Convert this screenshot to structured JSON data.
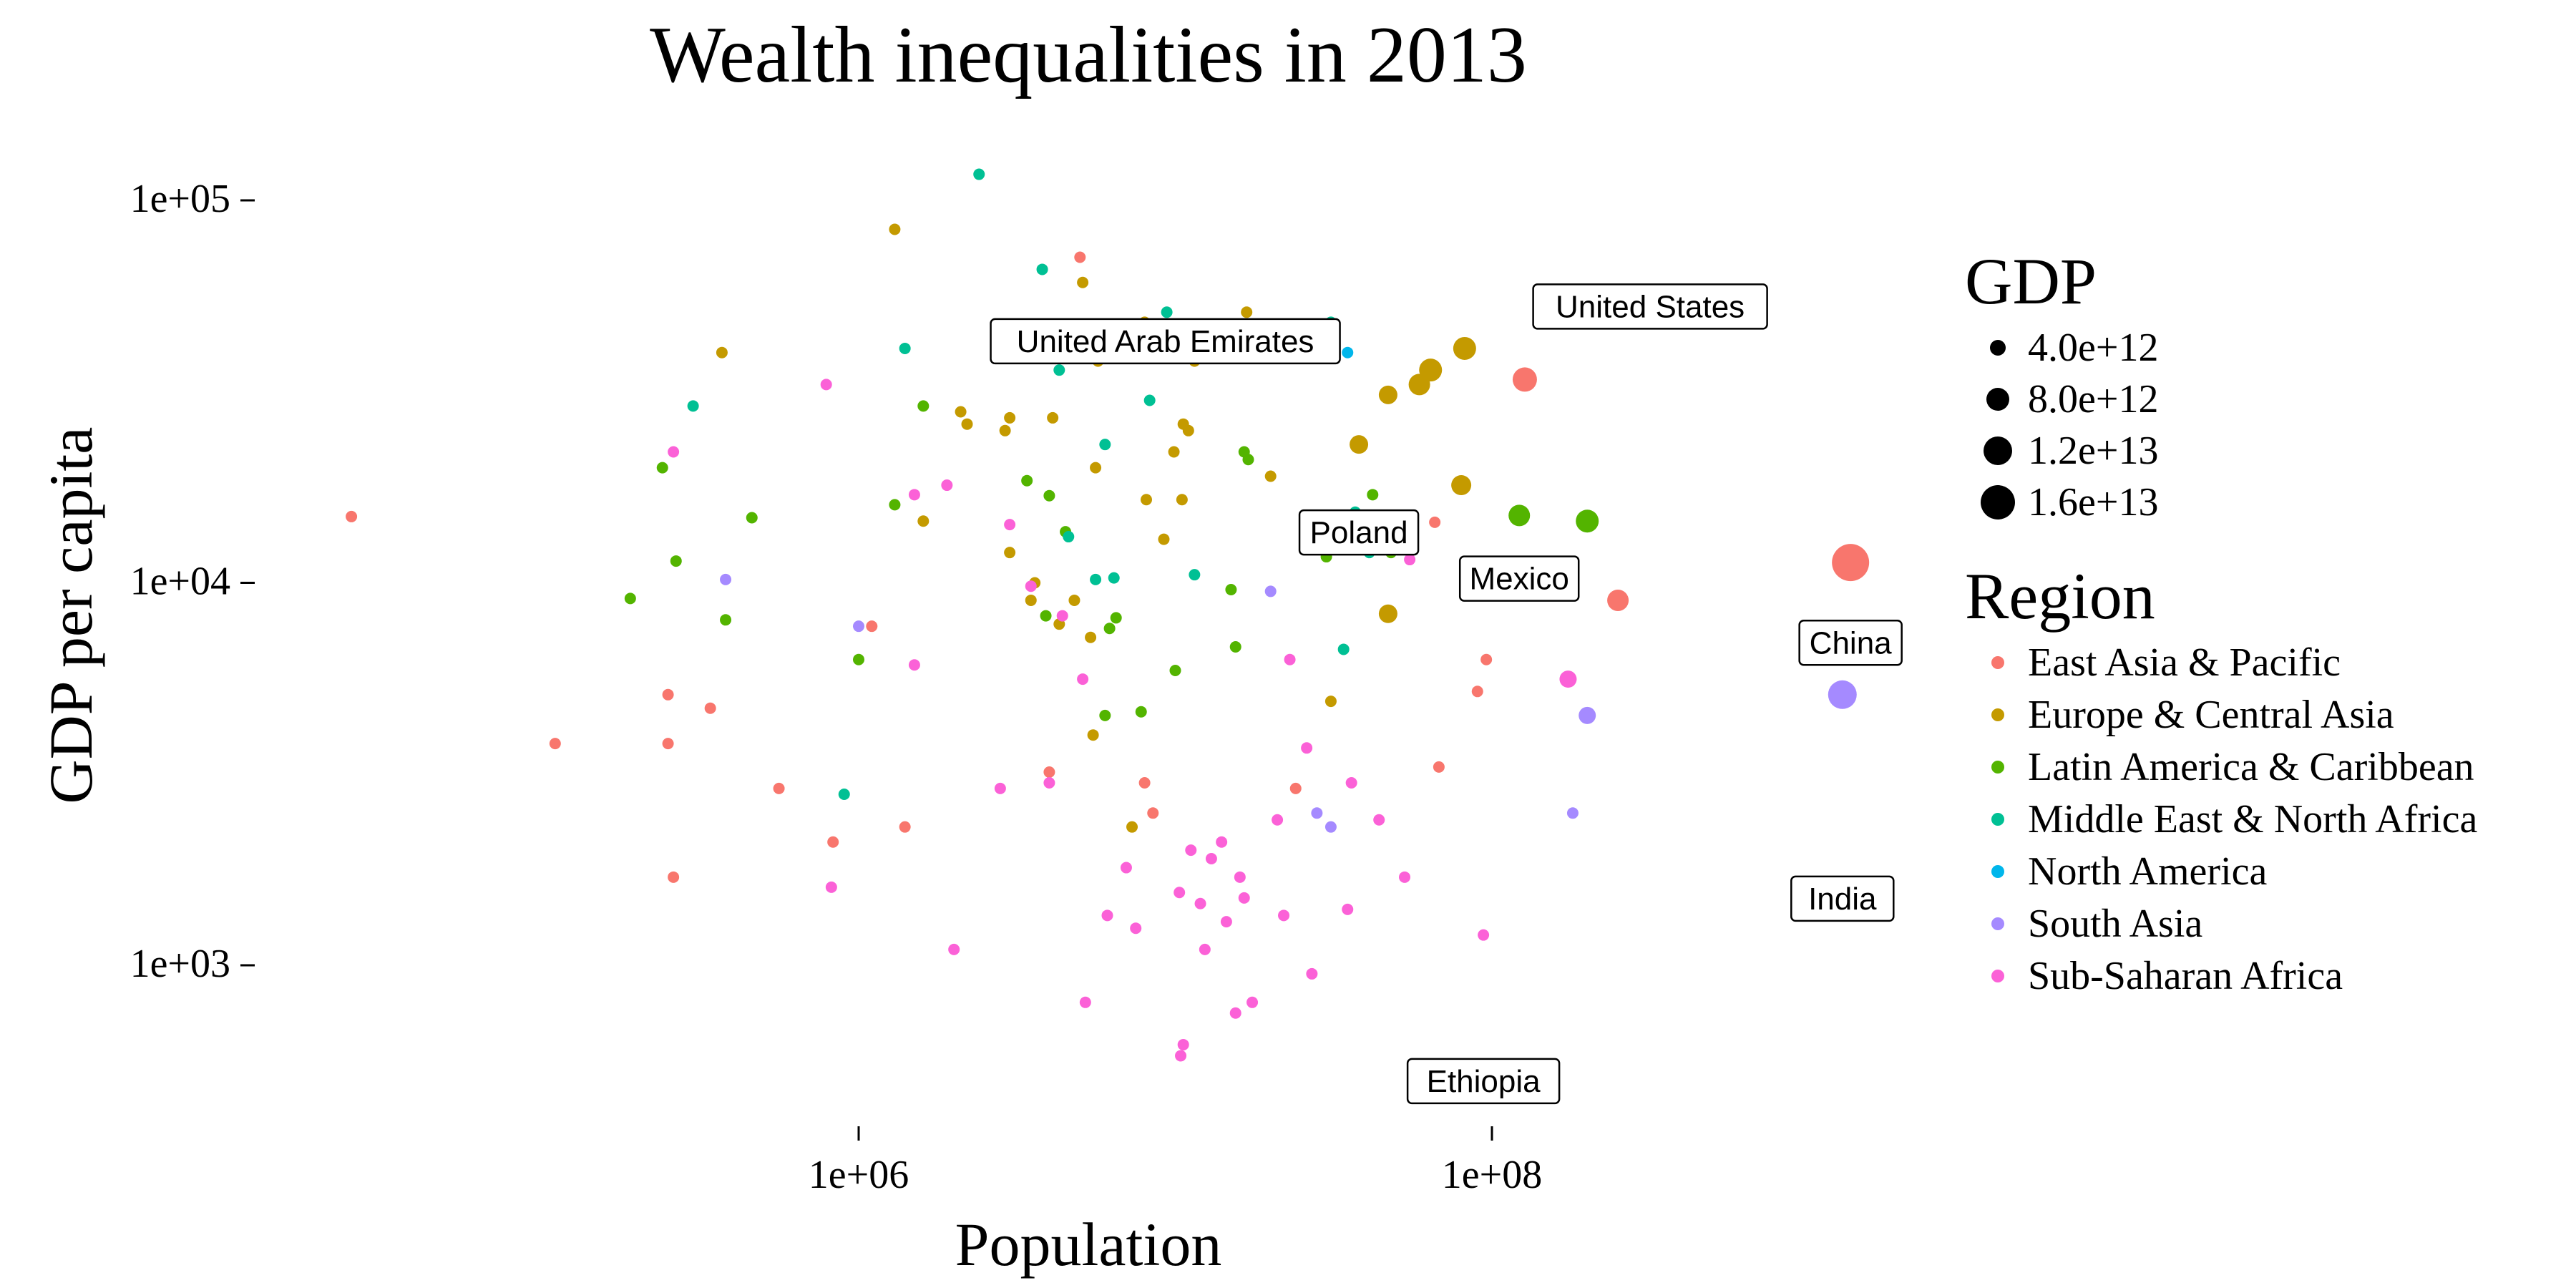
{
  "chart_data": {
    "type": "scatter",
    "title": "Wealth inequalities in 2013",
    "xlabel": "Population",
    "ylabel": "GDP per capita",
    "x_scale": "log10",
    "y_scale": "log10",
    "xlim": [
      20000,
      2000000000
    ],
    "ylim": [
      350,
      150000
    ],
    "x_ticks": [
      {
        "value": 1000000,
        "label": "1e+06"
      },
      {
        "value": 100000000,
        "label": "1e+08"
      }
    ],
    "y_ticks": [
      {
        "value": 1000,
        "label": "1e+03"
      },
      {
        "value": 10000,
        "label": "1e+04"
      },
      {
        "value": 100000,
        "label": "1e+05"
      }
    ],
    "grid": false,
    "legend_position": "right",
    "size_legend": {
      "title": "GDP",
      "entries": [
        {
          "value": 4000000000000.0,
          "label": "4.0e+12"
        },
        {
          "value": 8000000000000.0,
          "label": "8.0e+12"
        },
        {
          "value": 12000000000000.0,
          "label": "1.2e+13"
        },
        {
          "value": 16000000000000.0,
          "label": "1.6e+13"
        }
      ]
    },
    "color_legend": {
      "title": "Region",
      "entries": [
        {
          "name": "East Asia & Pacific",
          "color": "#F8766D"
        },
        {
          "name": "Europe & Central Asia",
          "color": "#C49A00"
        },
        {
          "name": "Latin America & Caribbean",
          "color": "#53B400"
        },
        {
          "name": "Middle East & North Africa",
          "color": "#00C094"
        },
        {
          "name": "North America",
          "color": "#00B6EB"
        },
        {
          "name": "South Asia",
          "color": "#A58AFF"
        },
        {
          "name": "Sub-Saharan Africa",
          "color": "#FB61D7"
        }
      ]
    },
    "labels": [
      {
        "text": "United Arab Emirates",
        "x": 9300000,
        "y": 43000
      },
      {
        "text": "United States",
        "x": 316000000,
        "y": 53000
      },
      {
        "text": "Poland",
        "x": 38000000,
        "y": 13600
      },
      {
        "text": "Mexico",
        "x": 122000000,
        "y": 10300
      },
      {
        "text": "China",
        "x": 1357000000,
        "y": 7000
      },
      {
        "text": "India",
        "x": 1279000000,
        "y": 1500
      },
      {
        "text": "Ethiopia",
        "x": 94000000,
        "y": 500
      }
    ],
    "points": [
      {
        "r": 0,
        "x": 25000,
        "y": 14900
      },
      {
        "r": 0,
        "x": 110000,
        "y": 3800
      },
      {
        "r": 0,
        "x": 250000,
        "y": 5100
      },
      {
        "r": 0,
        "x": 250000,
        "y": 3800
      },
      {
        "r": 0,
        "x": 260000,
        "y": 1700
      },
      {
        "r": 0,
        "x": 340000,
        "y": 4700
      },
      {
        "r": 0,
        "x": 560000,
        "y": 2900
      },
      {
        "r": 0,
        "x": 830000,
        "y": 2100
      },
      {
        "r": 0,
        "x": 1100000,
        "y": 7700
      },
      {
        "r": 0,
        "x": 1400000,
        "y": 2300
      },
      {
        "r": 0,
        "x": 4000000,
        "y": 3200
      },
      {
        "r": 0,
        "x": 5000000,
        "y": 71000
      },
      {
        "r": 0,
        "x": 8000000,
        "y": 3000
      },
      {
        "r": 0,
        "x": 8500000,
        "y": 2500
      },
      {
        "r": 0,
        "x": 24000000,
        "y": 2900
      },
      {
        "r": 0,
        "x": 38000000,
        "y": 23000
      },
      {
        "r": 0,
        "x": 66000000,
        "y": 14400
      },
      {
        "r": 0,
        "x": 68000000,
        "y": 3300
      },
      {
        "r": 0,
        "x": 90000000,
        "y": 5200
      },
      {
        "r": 0,
        "x": 96000000,
        "y": 6300
      },
      {
        "r": 0,
        "x": 127000000,
        "y": 34000
      },
      {
        "r": 0,
        "x": 250000000,
        "y": 9000
      },
      {
        "r": 0,
        "x": 1357000000,
        "y": 11300
      },
      {
        "r": 1,
        "x": 370000,
        "y": 40000
      },
      {
        "r": 1,
        "x": 1300000,
        "y": 84000
      },
      {
        "r": 1,
        "x": 1600000,
        "y": 14500
      },
      {
        "r": 1,
        "x": 2100000,
        "y": 28000
      },
      {
        "r": 1,
        "x": 2200000,
        "y": 26000
      },
      {
        "r": 1,
        "x": 2900000,
        "y": 25000
      },
      {
        "r": 1,
        "x": 3000000,
        "y": 27000
      },
      {
        "r": 1,
        "x": 3000000,
        "y": 12000
      },
      {
        "r": 1,
        "x": 3500000,
        "y": 9000
      },
      {
        "r": 1,
        "x": 3600000,
        "y": 10000
      },
      {
        "r": 1,
        "x": 4100000,
        "y": 27000
      },
      {
        "r": 1,
        "x": 4300000,
        "y": 7800
      },
      {
        "r": 1,
        "x": 4800000,
        "y": 9000
      },
      {
        "r": 1,
        "x": 5100000,
        "y": 61000
      },
      {
        "r": 1,
        "x": 5400000,
        "y": 7200
      },
      {
        "r": 1,
        "x": 5500000,
        "y": 4000
      },
      {
        "r": 1,
        "x": 5600000,
        "y": 20000
      },
      {
        "r": 1,
        "x": 5700000,
        "y": 38000
      },
      {
        "r": 1,
        "x": 7300000,
        "y": 2300
      },
      {
        "r": 1,
        "x": 8000000,
        "y": 48000
      },
      {
        "r": 1,
        "x": 8100000,
        "y": 16500
      },
      {
        "r": 1,
        "x": 9200000,
        "y": 13000
      },
      {
        "r": 1,
        "x": 9900000,
        "y": 22000
      },
      {
        "r": 1,
        "x": 10500000,
        "y": 16500
      },
      {
        "r": 1,
        "x": 10600000,
        "y": 26000
      },
      {
        "r": 1,
        "x": 11000000,
        "y": 25000
      },
      {
        "r": 1,
        "x": 11500000,
        "y": 38000
      },
      {
        "r": 1,
        "x": 16800000,
        "y": 51000
      },
      {
        "r": 1,
        "x": 20000000,
        "y": 19000
      },
      {
        "r": 1,
        "x": 31000000,
        "y": 4900
      },
      {
        "r": 1,
        "x": 38000000,
        "y": 23000
      },
      {
        "r": 1,
        "x": 47000000,
        "y": 8300
      },
      {
        "r": 1,
        "x": 47000000,
        "y": 31000
      },
      {
        "r": 1,
        "x": 59000000,
        "y": 33000
      },
      {
        "r": 1,
        "x": 64000000,
        "y": 36000
      },
      {
        "r": 1,
        "x": 80000000,
        "y": 18000
      },
      {
        "r": 1,
        "x": 82000000,
        "y": 41000
      },
      {
        "r": 2,
        "x": 190000,
        "y": 9100
      },
      {
        "r": 2,
        "x": 240000,
        "y": 20000
      },
      {
        "r": 2,
        "x": 265000,
        "y": 11400
      },
      {
        "r": 2,
        "x": 380000,
        "y": 8000
      },
      {
        "r": 2,
        "x": 460000,
        "y": 14800
      },
      {
        "r": 2,
        "x": 1000000,
        "y": 6300
      },
      {
        "r": 2,
        "x": 1300000,
        "y": 16000
      },
      {
        "r": 2,
        "x": 1600000,
        "y": 29000
      },
      {
        "r": 2,
        "x": 3400000,
        "y": 18500
      },
      {
        "r": 2,
        "x": 3900000,
        "y": 8200
      },
      {
        "r": 2,
        "x": 4000000,
        "y": 16900
      },
      {
        "r": 2,
        "x": 4500000,
        "y": 13600
      },
      {
        "r": 2,
        "x": 6000000,
        "y": 4500
      },
      {
        "r": 2,
        "x": 6200000,
        "y": 7600
      },
      {
        "r": 2,
        "x": 6500000,
        "y": 8100
      },
      {
        "r": 2,
        "x": 7800000,
        "y": 4600
      },
      {
        "r": 2,
        "x": 10000000,
        "y": 5900
      },
      {
        "r": 2,
        "x": 15000000,
        "y": 9600
      },
      {
        "r": 2,
        "x": 15500000,
        "y": 6800
      },
      {
        "r": 2,
        "x": 16500000,
        "y": 22000
      },
      {
        "r": 2,
        "x": 17000000,
        "y": 21000
      },
      {
        "r": 2,
        "x": 30000000,
        "y": 11700
      },
      {
        "r": 2,
        "x": 42000000,
        "y": 17000
      },
      {
        "r": 2,
        "x": 48000000,
        "y": 12000
      },
      {
        "r": 2,
        "x": 122000000,
        "y": 15000
      },
      {
        "r": 2,
        "x": 200000000,
        "y": 14500
      },
      {
        "r": 3,
        "x": 300000,
        "y": 29000
      },
      {
        "r": 3,
        "x": 900000,
        "y": 2800
      },
      {
        "r": 3,
        "x": 1400000,
        "y": 41000
      },
      {
        "r": 3,
        "x": 2400000,
        "y": 117000
      },
      {
        "r": 3,
        "x": 3800000,
        "y": 66000
      },
      {
        "r": 3,
        "x": 4300000,
        "y": 36000
      },
      {
        "r": 3,
        "x": 4600000,
        "y": 13200
      },
      {
        "r": 3,
        "x": 5600000,
        "y": 10200
      },
      {
        "r": 3,
        "x": 6000000,
        "y": 23000
      },
      {
        "r": 3,
        "x": 6400000,
        "y": 10300
      },
      {
        "r": 3,
        "x": 8300000,
        "y": 30000
      },
      {
        "r": 3,
        "x": 9400000,
        "y": 51000
      },
      {
        "r": 3,
        "x": 11500000,
        "y": 10500
      },
      {
        "r": 3,
        "x": 31000000,
        "y": 48000
      },
      {
        "r": 3,
        "x": 34000000,
        "y": 6700
      },
      {
        "r": 3,
        "x": 36000000,
        "y": 12500
      },
      {
        "r": 3,
        "x": 37000000,
        "y": 15300
      },
      {
        "r": 3,
        "x": 41000000,
        "y": 12000
      },
      {
        "r": 4,
        "x": 35000000,
        "y": 40000
      },
      {
        "r": 4,
        "x": 316000000,
        "y": 53000
      },
      {
        "r": 5,
        "x": 380000,
        "y": 10200
      },
      {
        "r": 5,
        "x": 1000000,
        "y": 7700
      },
      {
        "r": 5,
        "x": 20000000,
        "y": 9500
      },
      {
        "r": 5,
        "x": 28000000,
        "y": 2500
      },
      {
        "r": 5,
        "x": 31000000,
        "y": 2300
      },
      {
        "r": 5,
        "x": 180000000,
        "y": 2500
      },
      {
        "r": 5,
        "x": 200000000,
        "y": 4500
      },
      {
        "r": 5,
        "x": 1279000000,
        "y": 5100
      },
      {
        "r": 6,
        "x": 260000,
        "y": 22000
      },
      {
        "r": 6,
        "x": 790000,
        "y": 33000
      },
      {
        "r": 6,
        "x": 820000,
        "y": 1600
      },
      {
        "r": 6,
        "x": 1500000,
        "y": 6100
      },
      {
        "r": 6,
        "x": 1500000,
        "y": 17000
      },
      {
        "r": 6,
        "x": 1900000,
        "y": 18000
      },
      {
        "r": 6,
        "x": 2000000,
        "y": 1100
      },
      {
        "r": 6,
        "x": 2800000,
        "y": 2900
      },
      {
        "r": 6,
        "x": 3000000,
        "y": 14200
      },
      {
        "r": 6,
        "x": 3500000,
        "y": 9800
      },
      {
        "r": 6,
        "x": 4000000,
        "y": 3000
      },
      {
        "r": 6,
        "x": 4400000,
        "y": 8200
      },
      {
        "r": 6,
        "x": 5100000,
        "y": 5600
      },
      {
        "r": 6,
        "x": 5200000,
        "y": 800
      },
      {
        "r": 6,
        "x": 6100000,
        "y": 1350
      },
      {
        "r": 6,
        "x": 7000000,
        "y": 1800
      },
      {
        "r": 6,
        "x": 7500000,
        "y": 1250
      },
      {
        "r": 6,
        "x": 10300000,
        "y": 1550
      },
      {
        "r": 6,
        "x": 10400000,
        "y": 580
      },
      {
        "r": 6,
        "x": 10600000,
        "y": 620
      },
      {
        "r": 6,
        "x": 11200000,
        "y": 2000
      },
      {
        "r": 6,
        "x": 12000000,
        "y": 1450
      },
      {
        "r": 6,
        "x": 12400000,
        "y": 1100
      },
      {
        "r": 6,
        "x": 13000000,
        "y": 1900
      },
      {
        "r": 6,
        "x": 14000000,
        "y": 2100
      },
      {
        "r": 6,
        "x": 14500000,
        "y": 1300
      },
      {
        "r": 6,
        "x": 15500000,
        "y": 750
      },
      {
        "r": 6,
        "x": 16000000,
        "y": 1700
      },
      {
        "r": 6,
        "x": 16500000,
        "y": 1500
      },
      {
        "r": 6,
        "x": 17500000,
        "y": 800
      },
      {
        "r": 6,
        "x": 21000000,
        "y": 2400
      },
      {
        "r": 6,
        "x": 22000000,
        "y": 1350
      },
      {
        "r": 6,
        "x": 23000000,
        "y": 6300
      },
      {
        "r": 6,
        "x": 26000000,
        "y": 3700
      },
      {
        "r": 6,
        "x": 27000000,
        "y": 950
      },
      {
        "r": 6,
        "x": 35000000,
        "y": 1400
      },
      {
        "r": 6,
        "x": 36000000,
        "y": 3000
      },
      {
        "r": 6,
        "x": 44000000,
        "y": 2400
      },
      {
        "r": 6,
        "x": 53000000,
        "y": 1700
      },
      {
        "r": 6,
        "x": 55000000,
        "y": 11500
      },
      {
        "r": 6,
        "x": 67000000,
        "y": 450
      },
      {
        "r": 6,
        "x": 94000000,
        "y": 1200
      },
      {
        "r": 6,
        "x": 174000000,
        "y": 5600
      }
    ]
  }
}
